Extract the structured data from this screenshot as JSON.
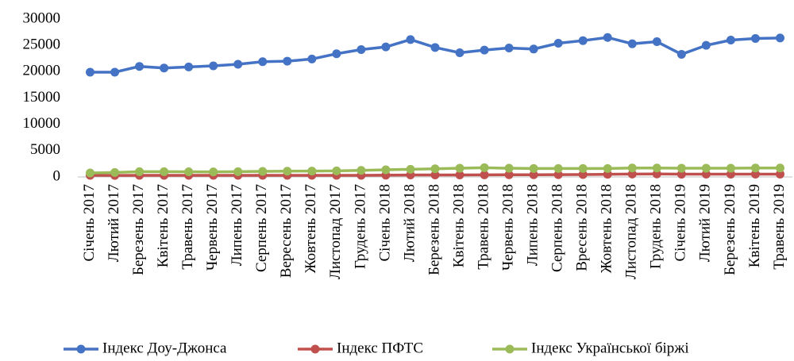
{
  "chart_data": {
    "type": "line",
    "categories": [
      "Січень 2017",
      "Лютий 2017",
      "Березень 2017",
      "Квітень 2017",
      "Травень 2017",
      "Червень 2017",
      "Липень 2017",
      "Серпень 2017",
      "Вересень 2017",
      "Жовтень 2017",
      "Листопад 2017",
      "Грудень 2017",
      "Січень 2018",
      "Лютий 2018",
      "Березень 2018",
      "Квітень 2018",
      "Травень 2018",
      "Червень 2018",
      "Липень 2018",
      "Серпень 2018",
      "Вресень 2018",
      "Жовтень 2018",
      "Листопад 2018",
      "Грудень 2018",
      "Січень 2019",
      "Лютий 2019",
      "Березень 2019",
      "Квітень 2019",
      "Травень 2019"
    ],
    "series": [
      {
        "name": "Індекс Доу-Джонса",
        "color": "#4472c4",
        "values": [
          19900,
          19900,
          21000,
          20700,
          20900,
          21100,
          21400,
          21900,
          22000,
          22400,
          23400,
          24200,
          24700,
          26100,
          24600,
          23600,
          24100,
          24500,
          24300,
          25400,
          25900,
          26500,
          25300,
          25700,
          23300,
          25000,
          26000,
          26300,
          26400
        ]
      },
      {
        "name": "Індекс ПФТС",
        "color": "#c0504d",
        "values": [
          300,
          290,
          300,
          310,
          300,
          300,
          300,
          300,
          300,
          310,
          300,
          300,
          330,
          380,
          380,
          370,
          400,
          420,
          420,
          440,
          460,
          500,
          540,
          570,
          520,
          530,
          530,
          530,
          530
        ]
      },
      {
        "name": "Індекс Української біржі",
        "color": "#9bbb59",
        "values": [
          750,
          850,
          1000,
          1000,
          980,
          960,
          1000,
          1050,
          1100,
          1120,
          1150,
          1250,
          1350,
          1450,
          1550,
          1650,
          1750,
          1650,
          1600,
          1600,
          1600,
          1600,
          1700,
          1700,
          1650,
          1650,
          1650,
          1700,
          1700
        ]
      }
    ],
    "ylim": [
      0,
      30000
    ],
    "yticks": [
      0,
      5000,
      10000,
      15000,
      20000,
      25000,
      30000
    ],
    "grid": false,
    "legend": "bottom"
  }
}
